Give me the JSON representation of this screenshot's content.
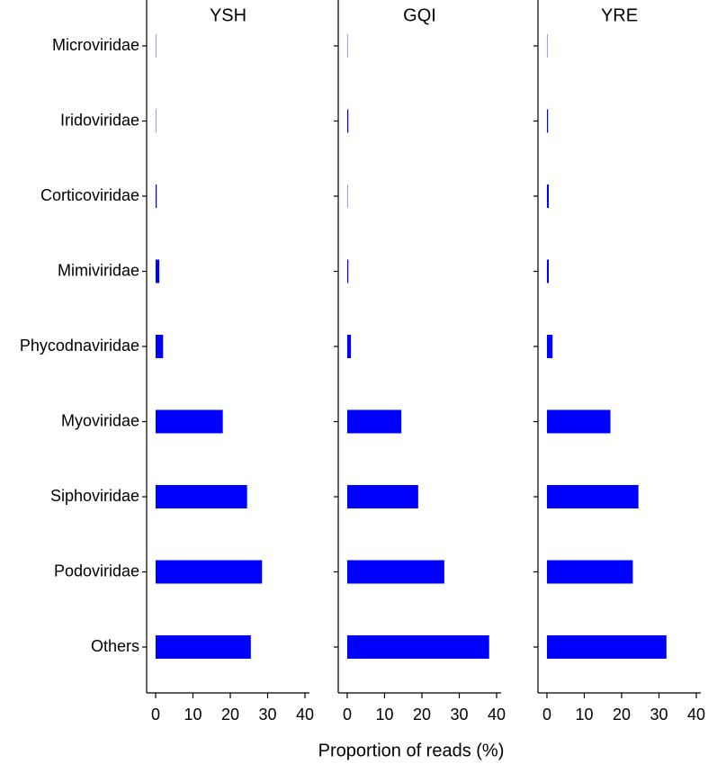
{
  "chart_data": {
    "type": "bar",
    "orientation": "horizontal",
    "x_label": "Proportion of reads (%)",
    "categories": [
      "Microviridae",
      "Iridoviridae",
      "Corticoviridae",
      "Mimiviridae",
      "Phycodnaviridae",
      "Myoviridae",
      "Siphoviridae",
      "Podoviridae",
      "Others"
    ],
    "series": [
      {
        "name": "YSH",
        "color": "#0000ff",
        "values": [
          0.1,
          0.1,
          0.3,
          1.0,
          2.0,
          18,
          24.5,
          28.5,
          25.5
        ]
      },
      {
        "name": "GQI",
        "color": "#0000ff",
        "values": [
          0.1,
          0.3,
          0.1,
          0.3,
          1.0,
          14.5,
          19,
          26,
          38
        ]
      },
      {
        "name": "YRE",
        "color": "#0000ff",
        "values": [
          0.1,
          0.3,
          0.5,
          0.5,
          1.5,
          17,
          24.5,
          23,
          32
        ]
      }
    ],
    "xlim": [
      -2.4,
      41.2
    ],
    "xticks": [
      0,
      10,
      20,
      30,
      40
    ],
    "grid": false
  }
}
